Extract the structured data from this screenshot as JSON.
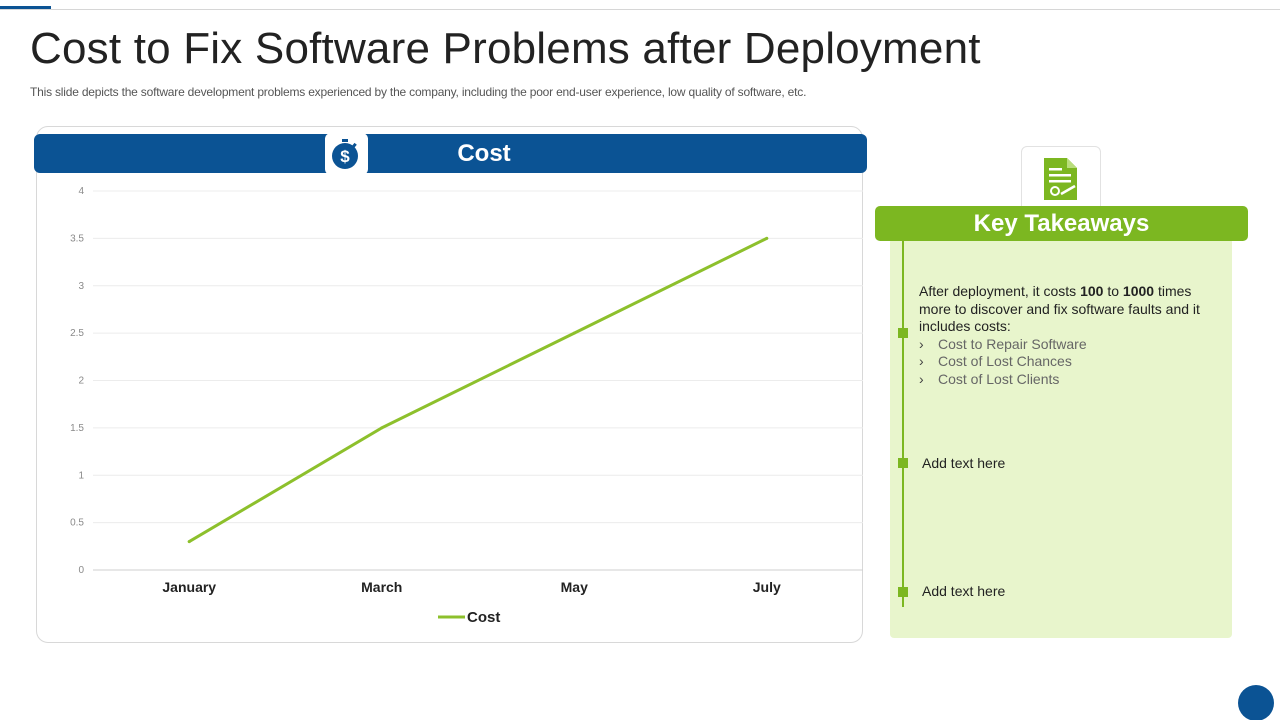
{
  "slide": {
    "title": "Cost to Fix Software Problems after Deployment",
    "subtitle": "This slide depicts the software development problems experienced by the company, including the poor end-user experience, low quality of software, etc."
  },
  "chart_panel": {
    "header_label": "Cost",
    "header_icon": "dollar-stopwatch-icon"
  },
  "chart_data": {
    "type": "line",
    "categories": [
      "January",
      "March",
      "May",
      "July"
    ],
    "series": [
      {
        "name": "Cost",
        "values": [
          0.3,
          1.5,
          2.5,
          3.5
        ],
        "color": "#8dc02c"
      }
    ],
    "y_ticks": [
      "0",
      "0.5",
      "1",
      "1.5",
      "2",
      "2.5",
      "3",
      "3.5",
      "4"
    ],
    "ylim": [
      0,
      4
    ],
    "grid": true,
    "legend_position": "bottom",
    "legend_label": "Cost"
  },
  "takeaways": {
    "icon": "document-certificate-icon",
    "header": "Key Takeaways",
    "item1": {
      "text_a": "After deployment, it costs ",
      "bold_a": "100",
      "text_b": " to ",
      "bold_b": "1000",
      "text_c": " times more to discover and fix software faults and it includes costs:",
      "sub_items": [
        "Cost to Repair Software",
        "Cost of Lost Chances",
        "Cost of Lost Clients"
      ]
    },
    "item2": "Add text here",
    "item3": "Add text here"
  },
  "colors": {
    "primary_blue": "#0b5394",
    "accent_green": "#7cb721",
    "line_green": "#8dc02c",
    "panel_green": "#e8f5cc"
  }
}
